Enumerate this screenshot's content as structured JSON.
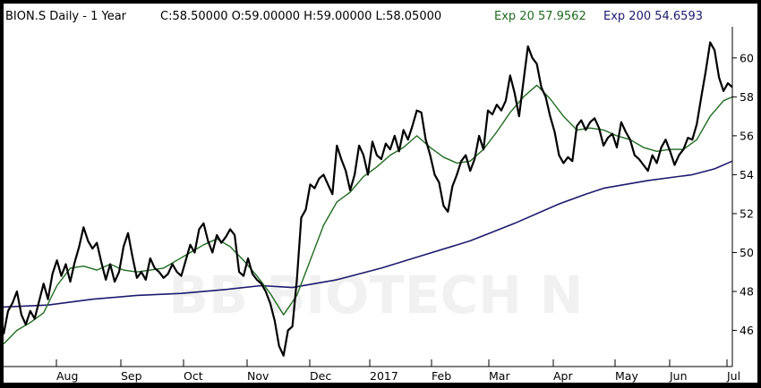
{
  "header": {
    "symbol_period": "BION.S Daily -  1 Year",
    "ohlc": "C:58.50000 O:59.00000 H:59.00000 L:58.05000",
    "ema20_label": "Exp 20 57.9562",
    "ema200_label": "Exp 200 54.6593"
  },
  "watermark": "BB BIOTECH N",
  "colors": {
    "price": "#000000",
    "ema20": "#1f6b1f",
    "ema200": "#1c1a6e",
    "background": "#ffffff",
    "frame": "#000000"
  },
  "chart_data": {
    "type": "line",
    "x_categories": [
      "Aug",
      "Sep",
      "Oct",
      "Nov",
      "Dec",
      "2017",
      "Feb",
      "Mar",
      "Apr",
      "May",
      "Jun",
      "Jul"
    ],
    "y_ticks": [
      46,
      48,
      50,
      52,
      54,
      56,
      58,
      60
    ],
    "ylim": [
      44.6,
      61.6
    ],
    "grid": false,
    "series": [
      {
        "name": "BION.S",
        "values": [
          [
            0,
            45.8
          ],
          [
            2,
            47.0
          ],
          [
            4,
            47.4
          ],
          [
            6,
            48.0
          ],
          [
            8,
            46.8
          ],
          [
            10,
            46.3
          ],
          [
            12,
            47.0
          ],
          [
            14,
            46.6
          ],
          [
            16,
            47.5
          ],
          [
            18,
            48.4
          ],
          [
            20,
            47.6
          ],
          [
            22,
            48.9
          ],
          [
            24,
            49.6
          ],
          [
            26,
            48.8
          ],
          [
            28,
            49.4
          ],
          [
            30,
            48.5
          ],
          [
            32,
            49.5
          ],
          [
            34,
            50.3
          ],
          [
            36,
            51.3
          ],
          [
            38,
            50.6
          ],
          [
            40,
            50.2
          ],
          [
            42,
            50.5
          ],
          [
            44,
            49.5
          ],
          [
            46,
            48.6
          ],
          [
            48,
            49.4
          ],
          [
            50,
            48.5
          ],
          [
            52,
            49.0
          ],
          [
            54,
            50.3
          ],
          [
            56,
            51.0
          ],
          [
            58,
            49.8
          ],
          [
            60,
            48.7
          ],
          [
            62,
            49.0
          ],
          [
            64,
            48.6
          ],
          [
            66,
            49.7
          ],
          [
            68,
            49.2
          ],
          [
            70,
            49.0
          ],
          [
            72,
            48.7
          ],
          [
            74,
            48.9
          ],
          [
            76,
            49.4
          ],
          [
            78,
            49.0
          ],
          [
            80,
            48.8
          ],
          [
            82,
            49.6
          ],
          [
            84,
            50.4
          ],
          [
            86,
            50.0
          ],
          [
            88,
            51.2
          ],
          [
            90,
            51.5
          ],
          [
            92,
            50.6
          ],
          [
            94,
            50.0
          ],
          [
            96,
            50.9
          ],
          [
            98,
            50.5
          ],
          [
            100,
            50.8
          ],
          [
            102,
            51.2
          ],
          [
            104,
            50.9
          ],
          [
            106,
            49.0
          ],
          [
            108,
            48.8
          ],
          [
            110,
            49.7
          ],
          [
            112,
            48.9
          ],
          [
            114,
            48.6
          ],
          [
            116,
            48.4
          ],
          [
            118,
            48.0
          ],
          [
            120,
            47.4
          ],
          [
            122,
            46.5
          ],
          [
            124,
            45.2
          ],
          [
            126,
            44.7
          ],
          [
            128,
            46.0
          ],
          [
            130,
            46.2
          ],
          [
            132,
            48.6
          ],
          [
            134,
            51.8
          ],
          [
            136,
            52.2
          ],
          [
            138,
            53.5
          ],
          [
            140,
            53.3
          ],
          [
            142,
            53.8
          ],
          [
            144,
            54.0
          ],
          [
            146,
            53.5
          ],
          [
            148,
            53.0
          ],
          [
            150,
            55.5
          ],
          [
            152,
            54.8
          ],
          [
            154,
            54.2
          ],
          [
            156,
            53.2
          ],
          [
            158,
            54.0
          ],
          [
            160,
            55.5
          ],
          [
            162,
            55.0
          ],
          [
            164,
            54.0
          ],
          [
            166,
            55.7
          ],
          [
            168,
            55.0
          ],
          [
            170,
            54.8
          ],
          [
            172,
            55.6
          ],
          [
            174,
            55.3
          ],
          [
            176,
            56.0
          ],
          [
            178,
            55.2
          ],
          [
            180,
            56.3
          ],
          [
            182,
            55.8
          ],
          [
            184,
            56.5
          ],
          [
            186,
            57.3
          ],
          [
            188,
            57.2
          ],
          [
            190,
            55.8
          ],
          [
            192,
            55.0
          ],
          [
            194,
            54.0
          ],
          [
            196,
            53.6
          ],
          [
            198,
            52.4
          ],
          [
            200,
            52.1
          ],
          [
            202,
            53.4
          ],
          [
            204,
            54.0
          ],
          [
            206,
            54.7
          ],
          [
            208,
            55.0
          ],
          [
            210,
            54.2
          ],
          [
            212,
            54.8
          ],
          [
            214,
            56.0
          ],
          [
            216,
            55.3
          ],
          [
            218,
            57.3
          ],
          [
            220,
            57.1
          ],
          [
            222,
            57.6
          ],
          [
            224,
            57.3
          ],
          [
            226,
            57.8
          ],
          [
            228,
            59.1
          ],
          [
            230,
            58.2
          ],
          [
            232,
            57.0
          ],
          [
            234,
            58.8
          ],
          [
            236,
            60.6
          ],
          [
            238,
            60.0
          ],
          [
            240,
            59.7
          ],
          [
            242,
            58.5
          ],
          [
            244,
            58.0
          ],
          [
            246,
            57.0
          ],
          [
            248,
            56.2
          ],
          [
            250,
            55.0
          ],
          [
            252,
            54.6
          ],
          [
            254,
            54.9
          ],
          [
            256,
            54.7
          ],
          [
            258,
            56.5
          ],
          [
            260,
            56.8
          ],
          [
            262,
            56.3
          ],
          [
            264,
            56.7
          ],
          [
            266,
            56.9
          ],
          [
            268,
            56.4
          ],
          [
            270,
            55.5
          ],
          [
            272,
            55.9
          ],
          [
            274,
            56.1
          ],
          [
            276,
            55.4
          ],
          [
            278,
            56.7
          ],
          [
            280,
            56.2
          ],
          [
            282,
            55.8
          ],
          [
            284,
            55.0
          ],
          [
            286,
            54.8
          ],
          [
            288,
            54.5
          ],
          [
            290,
            54.2
          ],
          [
            292,
            55.0
          ],
          [
            294,
            54.6
          ],
          [
            296,
            55.4
          ],
          [
            298,
            55.8
          ],
          [
            300,
            55.2
          ],
          [
            302,
            54.5
          ],
          [
            304,
            55.0
          ],
          [
            306,
            55.3
          ],
          [
            308,
            55.9
          ],
          [
            310,
            55.8
          ],
          [
            312,
            56.6
          ],
          [
            314,
            58.0
          ],
          [
            316,
            59.3
          ],
          [
            318,
            60.8
          ],
          [
            320,
            60.4
          ],
          [
            322,
            59.0
          ],
          [
            324,
            58.3
          ],
          [
            326,
            58.7
          ],
          [
            328,
            58.5
          ]
        ]
      },
      {
        "name": "Exp 20",
        "values": [
          [
            0,
            45.3
          ],
          [
            6,
            46.0
          ],
          [
            12,
            46.4
          ],
          [
            18,
            46.9
          ],
          [
            24,
            48.3
          ],
          [
            30,
            49.2
          ],
          [
            36,
            49.3
          ],
          [
            42,
            49.1
          ],
          [
            48,
            49.4
          ],
          [
            54,
            49.1
          ],
          [
            60,
            49.0
          ],
          [
            66,
            49.1
          ],
          [
            72,
            49.2
          ],
          [
            78,
            49.6
          ],
          [
            84,
            50.0
          ],
          [
            90,
            50.4
          ],
          [
            96,
            50.7
          ],
          [
            102,
            50.3
          ],
          [
            108,
            49.6
          ],
          [
            114,
            48.8
          ],
          [
            120,
            47.9
          ],
          [
            126,
            46.8
          ],
          [
            132,
            47.8
          ],
          [
            138,
            49.6
          ],
          [
            144,
            51.4
          ],
          [
            150,
            52.6
          ],
          [
            156,
            53.1
          ],
          [
            162,
            53.9
          ],
          [
            168,
            54.4
          ],
          [
            174,
            55.0
          ],
          [
            180,
            55.4
          ],
          [
            186,
            56.0
          ],
          [
            192,
            55.4
          ],
          [
            198,
            54.9
          ],
          [
            204,
            54.6
          ],
          [
            210,
            54.7
          ],
          [
            216,
            55.3
          ],
          [
            222,
            56.2
          ],
          [
            228,
            57.2
          ],
          [
            234,
            58.0
          ],
          [
            240,
            58.6
          ],
          [
            246,
            57.9
          ],
          [
            252,
            57.0
          ],
          [
            258,
            56.3
          ],
          [
            264,
            56.4
          ],
          [
            270,
            56.3
          ],
          [
            276,
            56.0
          ],
          [
            282,
            55.8
          ],
          [
            288,
            55.4
          ],
          [
            294,
            55.2
          ],
          [
            300,
            55.3
          ],
          [
            306,
            55.3
          ],
          [
            312,
            55.8
          ],
          [
            318,
            57.0
          ],
          [
            324,
            57.8
          ],
          [
            328,
            58.0
          ]
        ]
      },
      {
        "name": "Exp 200",
        "values": [
          [
            0,
            47.2
          ],
          [
            20,
            47.3
          ],
          [
            40,
            47.6
          ],
          [
            60,
            47.8
          ],
          [
            80,
            47.9
          ],
          [
            100,
            48.1
          ],
          [
            116,
            48.3
          ],
          [
            130,
            48.2
          ],
          [
            150,
            48.6
          ],
          [
            170,
            49.2
          ],
          [
            190,
            49.9
          ],
          [
            210,
            50.6
          ],
          [
            230,
            51.5
          ],
          [
            250,
            52.5
          ],
          [
            262,
            53.0
          ],
          [
            270,
            53.3
          ],
          [
            290,
            53.7
          ],
          [
            310,
            54.0
          ],
          [
            320,
            54.3
          ],
          [
            328,
            54.7
          ]
        ]
      }
    ]
  }
}
